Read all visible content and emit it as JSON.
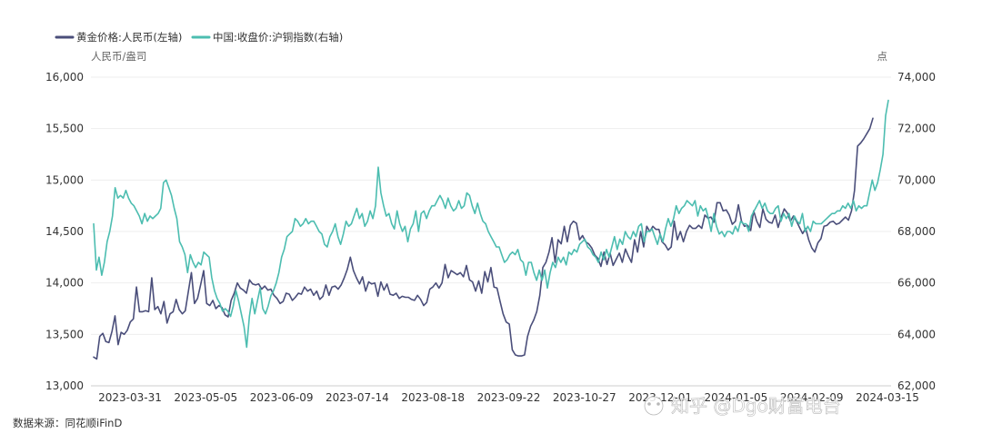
{
  "chart_data": {
    "type": "line",
    "title": "",
    "left_axis": {
      "unit": "人民币/盎司",
      "ylim": [
        13000,
        16000
      ],
      "ticks": [
        13000,
        13500,
        14000,
        14500,
        15000,
        15500,
        16000
      ],
      "tick_labels": [
        "13,000",
        "13,500",
        "14,000",
        "14,500",
        "15,000",
        "15,500",
        "16,000"
      ]
    },
    "right_axis": {
      "unit": "点",
      "ylim": [
        62000,
        74000
      ],
      "ticks": [
        62000,
        64000,
        66000,
        68000,
        70000,
        72000,
        74000
      ],
      "tick_labels": [
        "62,000",
        "64,000",
        "66,000",
        "68,000",
        "70,000",
        "72,000",
        "74,000"
      ]
    },
    "x_tick_labels": [
      "2023-03-31",
      "2023-05-05",
      "2023-06-09",
      "2023-07-14",
      "2023-08-18",
      "2023-09-22",
      "2023-10-27",
      "2023-12-01",
      "2024-01-05",
      "2024-02-09",
      "2024-03-15"
    ],
    "series": [
      {
        "name": "黄金价格:人民币(左轴)",
        "axis": "left",
        "color": "#4a4e7a",
        "values": [
          13280,
          13260,
          13480,
          13510,
          13430,
          13420,
          13530,
          13680,
          13400,
          13520,
          13500,
          13540,
          13620,
          13650,
          13960,
          13720,
          13720,
          13730,
          13720,
          14050,
          13740,
          13770,
          13700,
          13820,
          13610,
          13700,
          13720,
          13840,
          13740,
          13700,
          13730,
          13920,
          14100,
          13800,
          13850,
          13980,
          14120,
          13800,
          13780,
          13830,
          13750,
          13780,
          13760,
          13690,
          13670,
          13830,
          13900,
          14000,
          13950,
          13930,
          13900,
          14030,
          13990,
          13980,
          13990,
          13940,
          13970,
          13930,
          13940,
          13880,
          13850,
          13800,
          13820,
          13900,
          13890,
          13830,
          13860,
          13900,
          13890,
          13960,
          13920,
          13940,
          13880,
          13920,
          13840,
          13870,
          13980,
          13880,
          13960,
          13970,
          13940,
          13980,
          14050,
          14130,
          14250,
          14120,
          14050,
          13990,
          14060,
          13920,
          14010,
          13990,
          14000,
          13870,
          14010,
          13930,
          13990,
          13890,
          13880,
          13900,
          13850,
          13870,
          13860,
          13860,
          13840,
          13830,
          13880,
          13840,
          13780,
          13810,
          13940,
          13960,
          14000,
          13950,
          14000,
          14180,
          14050,
          14120,
          14100,
          14080,
          14100,
          14060,
          14170,
          14030,
          14010,
          13920,
          14020,
          13900,
          14110,
          14010,
          14150,
          13960,
          13950,
          13820,
          13700,
          13620,
          13600,
          13350,
          13300,
          13290,
          13290,
          13300,
          13480,
          13580,
          13640,
          13720,
          13880,
          14150,
          14200,
          14300,
          14440,
          14200,
          14420,
          14380,
          14550,
          14400,
          14560,
          14600,
          14580,
          14420,
          14460,
          14400,
          14380,
          14340,
          14270,
          14240,
          14160,
          14300,
          14180,
          14290,
          14170,
          14230,
          14290,
          14200,
          14330,
          14260,
          14200,
          14420,
          14300,
          14500,
          14350,
          14550,
          14500,
          14550,
          14520,
          14520,
          14400,
          14370,
          14320,
          14350,
          14600,
          14420,
          14500,
          14400,
          14500,
          14560,
          14530,
          14530,
          14560,
          14530,
          14660,
          14630,
          14640,
          14590,
          14780,
          14780,
          14700,
          14710,
          14660,
          14570,
          14600,
          14760,
          14600,
          14550,
          14560,
          14510,
          14700,
          14600,
          14540,
          14720,
          14620,
          14590,
          14580,
          14660,
          14540,
          14640,
          14720,
          14680,
          14600,
          14650,
          14600,
          14540,
          14480,
          14530,
          14420,
          14340,
          14300,
          14390,
          14430,
          14550,
          14560,
          14590,
          14600,
          14570,
          14580,
          14610,
          14640,
          14610,
          14700,
          14900,
          15330,
          15360,
          15400,
          15450,
          15500,
          15600
        ]
      },
      {
        "name": "中国:收盘价:沪铜指数(右轴)",
        "axis": "right",
        "color": "#4cbdb0",
        "values": [
          68300,
          66500,
          67000,
          66300,
          66800,
          67600,
          68000,
          68600,
          69700,
          69300,
          69400,
          69300,
          69600,
          69300,
          69100,
          69000,
          68800,
          68600,
          68300,
          68700,
          68400,
          68600,
          68500,
          68600,
          68700,
          68900,
          69900,
          70000,
          69700,
          69400,
          68900,
          68500,
          67600,
          67400,
          67100,
          66400,
          67100,
          66800,
          66600,
          66800,
          66700,
          67200,
          67100,
          67000,
          66200,
          65700,
          65400,
          65200,
          64900,
          65000,
          64900,
          64700,
          65100,
          65700,
          65300,
          64800,
          64300,
          63500,
          64700,
          65400,
          64800,
          65300,
          65800,
          65000,
          64800,
          65100,
          65500,
          65700,
          66000,
          66400,
          67000,
          67300,
          67800,
          67900,
          68000,
          68500,
          68400,
          68200,
          68300,
          68500,
          68300,
          68400,
          68400,
          68200,
          68000,
          67900,
          67500,
          67400,
          67800,
          68000,
          68300,
          67800,
          67500,
          67900,
          68400,
          68200,
          68300,
          68600,
          68900,
          68500,
          68700,
          68200,
          68400,
          68800,
          68500,
          69000,
          70500,
          69500,
          69000,
          68600,
          68700,
          68300,
          68100,
          68800,
          68300,
          68000,
          68200,
          67600,
          68100,
          68300,
          68800,
          68000,
          68700,
          68800,
          68500,
          68800,
          69000,
          69000,
          69200,
          69400,
          69200,
          68900,
          69300,
          69000,
          68800,
          68900,
          69200,
          68900,
          69000,
          69500,
          69400,
          69000,
          68700,
          69100,
          68700,
          68400,
          68300,
          68000,
          67800,
          67600,
          67400,
          67400,
          67100,
          66800,
          66900,
          67100,
          67200,
          67100,
          67300,
          66900,
          66800,
          66300,
          66800,
          66800,
          66400,
          66100,
          66500,
          66100,
          66500,
          65800,
          66400,
          66800,
          66600,
          67000,
          66800,
          67000,
          66700,
          67200,
          67100,
          67300,
          67200,
          67500,
          67600,
          67700,
          67400,
          67300,
          67100,
          67000,
          66800,
          67200,
          66900,
          67300,
          67000,
          67400,
          67800,
          67300,
          67700,
          67500,
          68000,
          67800,
          67700,
          68000,
          67800,
          68200,
          68300,
          67600,
          68000,
          68000,
          68100,
          67800,
          67500,
          67900,
          67600,
          68100,
          68500,
          68200,
          68500,
          69000,
          68700,
          68900,
          69000,
          69200,
          69100,
          69000,
          69200,
          68600,
          69000,
          68800,
          68900,
          68500,
          68000,
          68700,
          68200,
          67900,
          68000,
          67800,
          68000,
          68000,
          67900,
          68200,
          68000,
          68400,
          68300,
          68300,
          68000,
          68600,
          68800,
          69000,
          69200,
          68900,
          69100,
          68800,
          68700,
          68700,
          68900,
          69000,
          68400,
          68700,
          68500,
          68700,
          68200,
          68600,
          68400,
          68300,
          68700,
          68000,
          68200,
          68000,
          68400,
          68300,
          68300,
          68300,
          68400,
          68500,
          68600,
          68700,
          68700,
          68800,
          68800,
          69000,
          68900,
          69100,
          68900,
          69200,
          68800,
          69000,
          68900,
          69000,
          69000,
          69500,
          70000,
          69600,
          69900,
          70400,
          71000,
          72500,
          73100
        ]
      }
    ],
    "source": "数据来源：同花顺iFinD",
    "watermark": "知乎 @Dgo财富电台",
    "grid": true,
    "legend_position": "top-left"
  },
  "colors": {
    "gold": "#4a4e7a",
    "copper": "#4cbdb0",
    "grid": "#eeeeee",
    "axis": "#cccccc",
    "text": "#333333"
  }
}
